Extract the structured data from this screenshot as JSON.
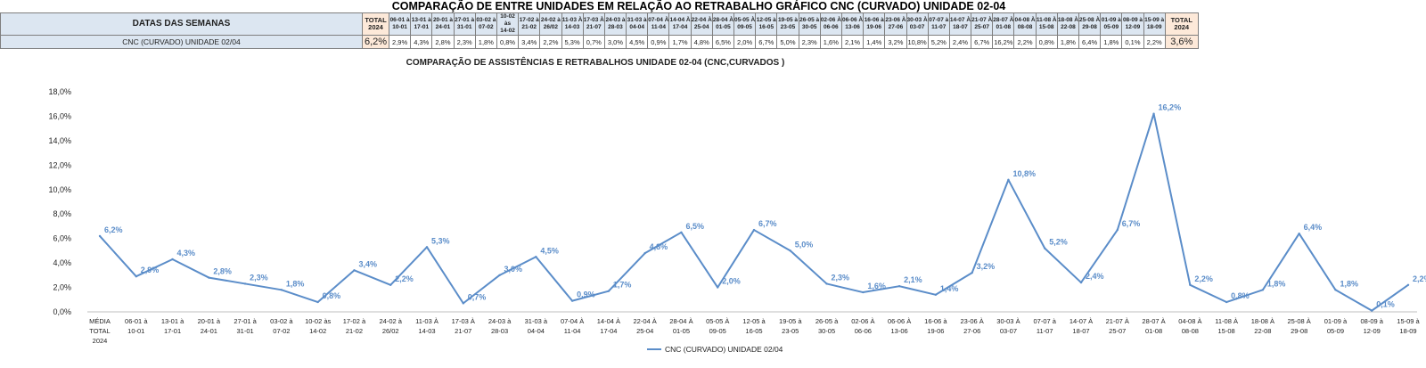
{
  "title": "COMPARAÇÃO DE ENTRE UNIDADES EM RELAÇÃO AO RETRABALHO GRÁFICO CNC (CURVADO) UNIDADE 02-04",
  "table": {
    "header_label": "DATAS DAS SEMANAS",
    "row_label": "CNC (CURVADO) UNIDADE 02/04",
    "total_label_start": [
      "TOTAL",
      "2024"
    ],
    "total_label_end": [
      "TOTAL",
      "2024"
    ],
    "total_start_value": "6,2%",
    "total_end_value": "3,6%",
    "weeks": [
      [
        "06-01 à",
        "10-01"
      ],
      [
        "13-01 à",
        "17-01"
      ],
      [
        "20-01 à",
        "24-01"
      ],
      [
        "27-01 à",
        "31-01"
      ],
      [
        "03-02 à",
        "07-02"
      ],
      [
        "10-02 às",
        "14-02"
      ],
      [
        "17-02 à",
        "21-02"
      ],
      [
        "24-02 à",
        "26/02"
      ],
      [
        "11-03 À",
        "14-03"
      ],
      [
        "17-03 À",
        "21-07"
      ],
      [
        "24-03 à",
        "28-03"
      ],
      [
        "31-03 à",
        "04-04"
      ],
      [
        "07-04 À",
        "11-04"
      ],
      [
        "14-04 À",
        "17-04"
      ],
      [
        "22-04 À",
        "25-04"
      ],
      [
        "28-04 À",
        "01-05"
      ],
      [
        "05-05 À",
        "09-05"
      ],
      [
        "12-05 à",
        "16-05"
      ],
      [
        "19-05 à",
        "23-05"
      ],
      [
        "26-05 à",
        "30-05"
      ],
      [
        "02-06 À",
        "06-06"
      ],
      [
        "06-06 À",
        "13-06"
      ],
      [
        "16-06 à",
        "19-06"
      ],
      [
        "23-06 À",
        "27-06"
      ],
      [
        "30-03 À",
        "03-07"
      ],
      [
        "07-07 à",
        "11-07"
      ],
      [
        "14-07 À",
        "18-07"
      ],
      [
        "21-07 À",
        "25-07"
      ],
      [
        "28-07 À",
        "01-08"
      ],
      [
        "04-08 À",
        "08-08"
      ],
      [
        "11-08 À",
        "15-08"
      ],
      [
        "18-08 À",
        "22-08"
      ],
      [
        "25-08 À",
        "29-08"
      ],
      [
        "01-09 à",
        "05-09"
      ],
      [
        "08-09 à",
        "12-09"
      ],
      [
        "15-09 à",
        "18-09"
      ]
    ],
    "values": [
      "2,9%",
      "4,3%",
      "2,8%",
      "2,3%",
      "1,8%",
      "0,8%",
      "3,4%",
      "2,2%",
      "5,3%",
      "0,7%",
      "3,0%",
      "4,5%",
      "0,9%",
      "1,7%",
      "4,8%",
      "6,5%",
      "2,0%",
      "6,7%",
      "5,0%",
      "2,3%",
      "1,6%",
      "2,1%",
      "1,4%",
      "3,2%",
      "10,8%",
      "5,2%",
      "2,4%",
      "6,7%",
      "16,2%",
      "2,2%",
      "0,8%",
      "1,8%",
      "6,4%",
      "1,8%",
      "0,1%",
      "2,2%"
    ]
  },
  "chart_data": {
    "type": "line",
    "title": "COMPARAÇÃO DE ASSISTÊNCIAS E RETRABALHOS UNIDADE 02-04  (CNC,CURVADOS )",
    "xlabel": "",
    "ylabel": "",
    "ylim": [
      0,
      18
    ],
    "yticks": [
      "0,0%",
      "2,0%",
      "4,0%",
      "6,0%",
      "8,0%",
      "10,0%",
      "12,0%",
      "14,0%",
      "16,0%",
      "18,0%"
    ],
    "grid": false,
    "legend_position": "bottom",
    "categories": [
      [
        "MÉDIA",
        "TOTAL",
        "2024"
      ],
      [
        "06-01 à",
        "10-01"
      ],
      [
        "13-01 à",
        "17-01"
      ],
      [
        "20-01 à",
        "24-01"
      ],
      [
        "27-01 à",
        "31-01"
      ],
      [
        "03-02 à",
        "07-02"
      ],
      [
        "10-02 às",
        "14-02"
      ],
      [
        "17-02 à",
        "21-02"
      ],
      [
        "24-02 à",
        "26/02"
      ],
      [
        "11-03 À",
        "14-03"
      ],
      [
        "17-03 À",
        "21-07"
      ],
      [
        "24-03 à",
        "28-03"
      ],
      [
        "31-03 à",
        "04-04"
      ],
      [
        "07-04 À",
        "11-04"
      ],
      [
        "14-04 À",
        "17-04"
      ],
      [
        "22-04 À",
        "25-04"
      ],
      [
        "28-04 À",
        "01-05"
      ],
      [
        "05-05 À",
        "09-05"
      ],
      [
        "12-05 à",
        "16-05"
      ],
      [
        "19-05 à",
        "23-05"
      ],
      [
        "26-05 à",
        "30-05"
      ],
      [
        "02-06 À",
        "06-06"
      ],
      [
        "06-06 À",
        "13-06"
      ],
      [
        "16-06 à",
        "19-06"
      ],
      [
        "23-06 À",
        "27-06"
      ],
      [
        "30-03 À",
        "03-07"
      ],
      [
        "07-07 à",
        "11-07"
      ],
      [
        "14-07 À",
        "18-07"
      ],
      [
        "21-07 À",
        "25-07"
      ],
      [
        "28-07 À",
        "01-08"
      ],
      [
        "04-08 À",
        "08-08"
      ],
      [
        "11-08 À",
        "15-08"
      ],
      [
        "18-08 À",
        "22-08"
      ],
      [
        "25-08 À",
        "29-08"
      ],
      [
        "01-09 à",
        "05-09"
      ],
      [
        "08-09 à",
        "12-09"
      ],
      [
        "15-09 à",
        "18-09"
      ]
    ],
    "series": [
      {
        "name": "CNC (CURVADO) UNIDADE 02/04",
        "color": "#5b8dc9",
        "values": [
          6.2,
          2.9,
          4.3,
          2.8,
          2.3,
          1.8,
          0.8,
          3.4,
          2.2,
          5.3,
          0.7,
          3.0,
          4.5,
          0.9,
          1.7,
          4.8,
          6.5,
          2.0,
          6.7,
          5.0,
          2.3,
          1.6,
          2.1,
          1.4,
          3.2,
          10.8,
          5.2,
          2.4,
          6.7,
          16.2,
          2.2,
          0.8,
          1.8,
          6.4,
          1.8,
          0.1,
          2.2
        ],
        "labels": [
          "6,2%",
          "2,9%",
          "4,3%",
          "2,8%",
          "2,3%",
          "1,8%",
          "0,8%",
          "3,4%",
          "2,2%",
          "5,3%",
          "0,7%",
          "3,0%",
          "4,5%",
          "0,9%",
          "1,7%",
          "4,8%",
          "6,5%",
          "2,0%",
          "6,7%",
          "5,0%",
          "2,3%",
          "1,6%",
          "2,1%",
          "1,4%",
          "3,2%",
          "10,8%",
          "5,2%",
          "2,4%",
          "6,7%",
          "16,2%",
          "2,2%",
          "0,8%",
          "1,8%",
          "6,4%",
          "1,8%",
          "0,1%",
          "2,2%"
        ]
      }
    ]
  }
}
